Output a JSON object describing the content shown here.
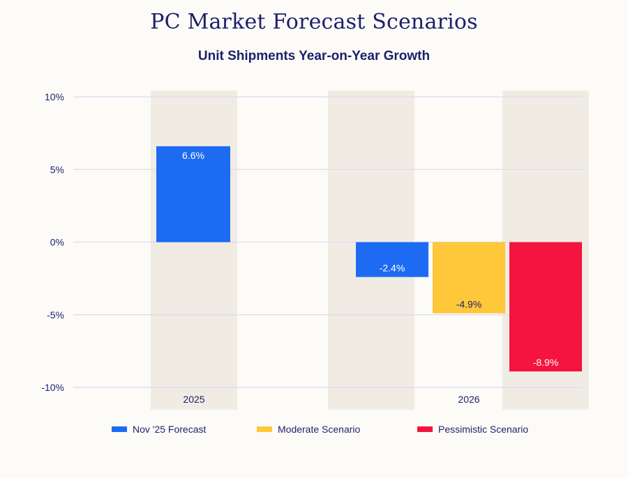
{
  "chart_data": {
    "type": "bar",
    "title": "PC Market Forecast Scenarios",
    "subtitle": "Unit Shipments Year-on-Year Growth",
    "categories": [
      "2025",
      "2026"
    ],
    "series": [
      {
        "name": "Nov '25 Forecast",
        "color": "#1d6bf2",
        "values": [
          6.6,
          -2.4
        ],
        "labels": [
          "6.6%",
          "-2.4%"
        ]
      },
      {
        "name": "Moderate Scenario",
        "color": "#ffc73a",
        "values": [
          null,
          -4.9
        ],
        "labels": [
          null,
          "-4.9%"
        ]
      },
      {
        "name": "Pessimistic Scenario",
        "color": "#f5143f",
        "values": [
          null,
          -8.9
        ],
        "labels": [
          null,
          "-8.9%"
        ]
      }
    ],
    "yticks": [
      10,
      5,
      0,
      -5,
      -10
    ],
    "ytick_labels": [
      "10%",
      "5%",
      "0%",
      "-5%",
      "-10%"
    ],
    "ylim": [
      -10,
      10
    ],
    "grid": true,
    "legend": "bottom"
  },
  "colors": {
    "title": "#1d1f6b",
    "grid": "#dcdaf0",
    "band": "#f1ece3"
  }
}
